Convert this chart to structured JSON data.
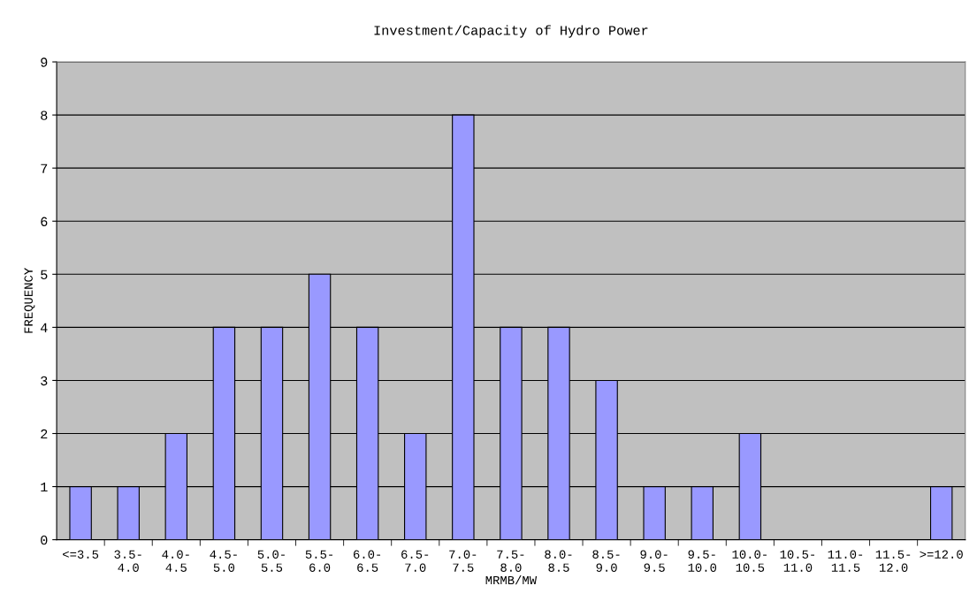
{
  "chart_data": {
    "type": "bar",
    "title": "Investment/Capacity of Hydro Power",
    "xlabel": "MRMB/MW",
    "ylabel": "FREQUENCY",
    "categories": [
      "<=3.5",
      "3.5-\n4.0",
      "4.0-\n4.5",
      "4.5-\n5.0",
      "5.0-\n5.5",
      "5.5-\n6.0",
      "6.0-\n6.5",
      "6.5-\n7.0",
      "7.0-\n7.5",
      "7.5-\n8.0",
      "8.0-\n8.5",
      "8.5-\n9.0",
      "9.0-\n9.5",
      "9.5-\n10.0",
      "10.0-\n10.5",
      "10.5-\n11.0",
      "11.0-\n11.5",
      "11.5-\n12.0",
      ">=12.0"
    ],
    "values": [
      1,
      1,
      2,
      4,
      4,
      5,
      4,
      2,
      8,
      4,
      4,
      3,
      1,
      1,
      2,
      0,
      0,
      0,
      1
    ],
    "color": "#9999ff",
    "ylim": [
      0,
      9
    ],
    "yticks": [
      0,
      1,
      2,
      3,
      4,
      5,
      6,
      7,
      8,
      9
    ],
    "grid": "y",
    "legend": false
  }
}
